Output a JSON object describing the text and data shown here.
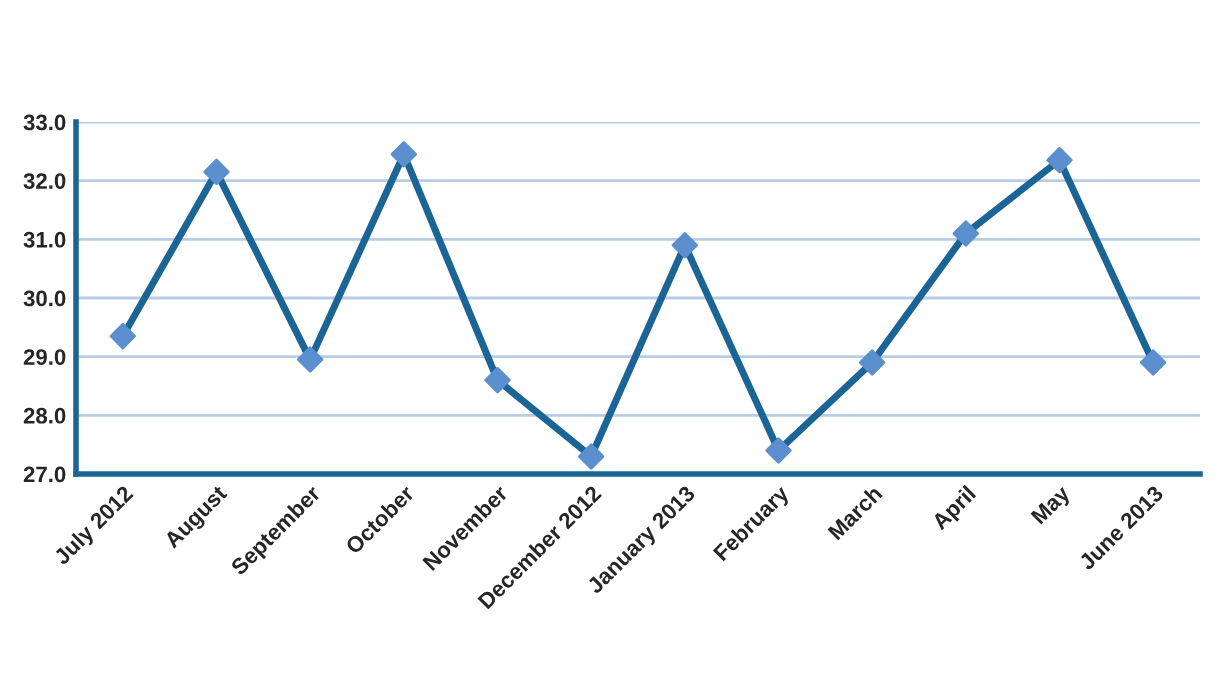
{
  "chart_data": {
    "type": "line",
    "categories": [
      "July 2012",
      "August",
      "September",
      "October",
      "November",
      "December 2012",
      "January 2013",
      "February",
      "March",
      "April",
      "May",
      "June 2013"
    ],
    "series": [
      {
        "color": "#1a6496",
        "values": [
          29.35,
          32.15,
          28.95,
          32.45,
          28.6,
          27.3,
          30.9,
          27.4,
          28.9,
          31.1,
          32.35,
          28.9
        ]
      }
    ],
    "ylim": [
      27.0,
      33.0
    ],
    "yticks": [
      {
        "value": 27,
        "label": "27.0"
      },
      {
        "value": 28,
        "label": "28.0"
      },
      {
        "value": 29,
        "label": "29.0"
      },
      {
        "value": 30,
        "label": "30.0"
      },
      {
        "value": 31,
        "label": "31.0"
      },
      {
        "value": 32,
        "label": "32.0"
      },
      {
        "value": 33,
        "label": "33.0"
      }
    ],
    "grid": "y",
    "marker": "diamond",
    "line_style": "solid",
    "legend": false
  }
}
